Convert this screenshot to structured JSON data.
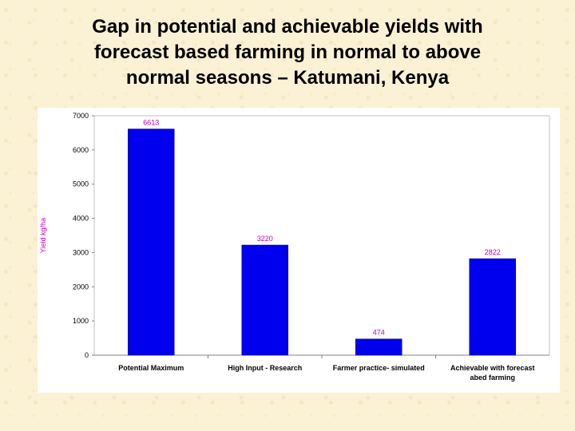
{
  "slide": {
    "title_lines": [
      "Gap in potential and achievable yields with",
      "forecast based farming in normal to above",
      "normal seasons – Katumani, Kenya"
    ]
  },
  "chart_data": {
    "type": "bar",
    "title": "",
    "xlabel": "",
    "ylabel": "Yield kg/ha",
    "categories": [
      [
        "Potential Maximum"
      ],
      [
        "High Input - Research"
      ],
      [
        "Farmer practice- simulated"
      ],
      [
        "Achievable with forecast",
        "abed farming"
      ]
    ],
    "values": [
      6613,
      3220,
      474,
      2822
    ],
    "data_labels": [
      "6613",
      "3220",
      "474",
      "2822"
    ],
    "ylim": [
      0,
      7000
    ],
    "yticks": [
      0,
      1000,
      2000,
      3000,
      4000,
      5000,
      6000,
      7000
    ],
    "grid": false,
    "legend": "none",
    "colors": {
      "bar": "#0000ee",
      "data_label": "#c000c0",
      "axis_title": "#c000c0",
      "plot_border": "#c0c0c0"
    }
  }
}
